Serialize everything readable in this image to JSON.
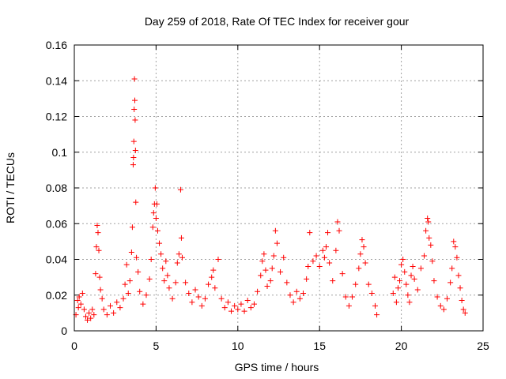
{
  "chart_data": {
    "type": "scatter",
    "title": "Day 259 of 2018, Rate Of TEC Index for receiver gour",
    "xlabel": "GPS time / hours",
    "ylabel": "ROTI / TECUs",
    "xlim": [
      0,
      25
    ],
    "ylim": [
      0,
      0.16
    ],
    "xticks": [
      0,
      5,
      10,
      15,
      20,
      25
    ],
    "xtick_labels": [
      "0",
      "5",
      "10",
      "15",
      "20",
      "25"
    ],
    "yticks": [
      0,
      0.02,
      0.04,
      0.06,
      0.08,
      0.1,
      0.12,
      0.14,
      0.16
    ],
    "ytick_labels": [
      "0",
      "0.02",
      "0.04",
      "0.06",
      "0.08",
      "0.1",
      "0.12",
      "0.14",
      "0.16"
    ],
    "grid": true,
    "marker": "plus",
    "marker_color": "#ff0000",
    "series": [
      {
        "points": [
          [
            0.1,
            0.009
          ],
          [
            0.2,
            0.017
          ],
          [
            0.25,
            0.013
          ],
          [
            0.3,
            0.019
          ],
          [
            0.4,
            0.015
          ],
          [
            0.5,
            0.021
          ],
          [
            0.6,
            0.012
          ],
          [
            0.7,
            0.008
          ],
          [
            0.8,
            0.006
          ],
          [
            0.9,
            0.01
          ],
          [
            1.0,
            0.007
          ],
          [
            1.1,
            0.012
          ],
          [
            1.2,
            0.009
          ],
          [
            1.3,
            0.032
          ],
          [
            1.35,
            0.047
          ],
          [
            1.4,
            0.059
          ],
          [
            1.45,
            0.055
          ],
          [
            1.5,
            0.045
          ],
          [
            1.55,
            0.03
          ],
          [
            1.6,
            0.023
          ],
          [
            1.7,
            0.018
          ],
          [
            1.8,
            0.012
          ],
          [
            2.0,
            0.009
          ],
          [
            2.2,
            0.014
          ],
          [
            2.4,
            0.01
          ],
          [
            2.6,
            0.016
          ],
          [
            2.8,
            0.013
          ],
          [
            3.0,
            0.018
          ],
          [
            3.1,
            0.026
          ],
          [
            3.2,
            0.037
          ],
          [
            3.3,
            0.021
          ],
          [
            3.4,
            0.028
          ],
          [
            3.5,
            0.044
          ],
          [
            3.55,
            0.058
          ],
          [
            3.6,
            0.093
          ],
          [
            3.62,
            0.097
          ],
          [
            3.64,
            0.106
          ],
          [
            3.66,
            0.124
          ],
          [
            3.68,
            0.141
          ],
          [
            3.7,
            0.129
          ],
          [
            3.72,
            0.118
          ],
          [
            3.74,
            0.101
          ],
          [
            3.76,
            0.072
          ],
          [
            3.8,
            0.041
          ],
          [
            3.9,
            0.033
          ],
          [
            4.0,
            0.022
          ],
          [
            4.2,
            0.015
          ],
          [
            4.4,
            0.02
          ],
          [
            4.6,
            0.029
          ],
          [
            4.7,
            0.04
          ],
          [
            4.8,
            0.058
          ],
          [
            4.85,
            0.066
          ],
          [
            4.9,
            0.071
          ],
          [
            4.95,
            0.08
          ],
          [
            5.0,
            0.063
          ],
          [
            5.05,
            0.071
          ],
          [
            5.1,
            0.056
          ],
          [
            5.2,
            0.049
          ],
          [
            5.3,
            0.043
          ],
          [
            5.4,
            0.035
          ],
          [
            5.5,
            0.028
          ],
          [
            5.6,
            0.039
          ],
          [
            5.7,
            0.031
          ],
          [
            5.8,
            0.024
          ],
          [
            6.0,
            0.018
          ],
          [
            6.2,
            0.027
          ],
          [
            6.3,
            0.038
          ],
          [
            6.4,
            0.043
          ],
          [
            6.5,
            0.079
          ],
          [
            6.55,
            0.052
          ],
          [
            6.6,
            0.041
          ],
          [
            6.8,
            0.027
          ],
          [
            7.0,
            0.021
          ],
          [
            7.2,
            0.016
          ],
          [
            7.4,
            0.023
          ],
          [
            7.6,
            0.019
          ],
          [
            7.8,
            0.014
          ],
          [
            8.0,
            0.018
          ],
          [
            8.2,
            0.026
          ],
          [
            8.4,
            0.03
          ],
          [
            8.5,
            0.034
          ],
          [
            8.6,
            0.024
          ],
          [
            8.8,
            0.04
          ],
          [
            9.0,
            0.018
          ],
          [
            9.2,
            0.013
          ],
          [
            9.4,
            0.016
          ],
          [
            9.6,
            0.011
          ],
          [
            9.8,
            0.014
          ],
          [
            10.0,
            0.012
          ],
          [
            10.2,
            0.015
          ],
          [
            10.4,
            0.011
          ],
          [
            10.6,
            0.017
          ],
          [
            10.8,
            0.013
          ],
          [
            11.0,
            0.015
          ],
          [
            11.2,
            0.022
          ],
          [
            11.4,
            0.031
          ],
          [
            11.5,
            0.039
          ],
          [
            11.6,
            0.043
          ],
          [
            11.7,
            0.034
          ],
          [
            11.8,
            0.025
          ],
          [
            12.0,
            0.028
          ],
          [
            12.1,
            0.035
          ],
          [
            12.2,
            0.042
          ],
          [
            12.3,
            0.056
          ],
          [
            12.4,
            0.049
          ],
          [
            12.6,
            0.033
          ],
          [
            12.8,
            0.041
          ],
          [
            13.0,
            0.027
          ],
          [
            13.2,
            0.02
          ],
          [
            13.4,
            0.016
          ],
          [
            13.6,
            0.022
          ],
          [
            13.8,
            0.018
          ],
          [
            14.0,
            0.021
          ],
          [
            14.2,
            0.029
          ],
          [
            14.3,
            0.036
          ],
          [
            14.4,
            0.055
          ],
          [
            14.6,
            0.039
          ],
          [
            14.8,
            0.042
          ],
          [
            15.0,
            0.036
          ],
          [
            15.2,
            0.045
          ],
          [
            15.3,
            0.041
          ],
          [
            15.4,
            0.047
          ],
          [
            15.5,
            0.055
          ],
          [
            15.6,
            0.038
          ],
          [
            15.8,
            0.028
          ],
          [
            16.0,
            0.045
          ],
          [
            16.1,
            0.061
          ],
          [
            16.2,
            0.056
          ],
          [
            16.4,
            0.032
          ],
          [
            16.6,
            0.019
          ],
          [
            16.8,
            0.014
          ],
          [
            17.0,
            0.019
          ],
          [
            17.2,
            0.026
          ],
          [
            17.4,
            0.035
          ],
          [
            17.5,
            0.043
          ],
          [
            17.6,
            0.051
          ],
          [
            17.7,
            0.047
          ],
          [
            17.8,
            0.038
          ],
          [
            18.0,
            0.026
          ],
          [
            18.2,
            0.021
          ],
          [
            18.4,
            0.014
          ],
          [
            18.5,
            0.009
          ],
          [
            19.5,
            0.021
          ],
          [
            19.6,
            0.03
          ],
          [
            19.7,
            0.016
          ],
          [
            19.8,
            0.024
          ],
          [
            19.9,
            0.028
          ],
          [
            20.0,
            0.037
          ],
          [
            20.1,
            0.04
          ],
          [
            20.2,
            0.033
          ],
          [
            20.3,
            0.026
          ],
          [
            20.4,
            0.02
          ],
          [
            20.5,
            0.016
          ],
          [
            20.6,
            0.031
          ],
          [
            20.7,
            0.036
          ],
          [
            20.8,
            0.029
          ],
          [
            21.0,
            0.023
          ],
          [
            21.2,
            0.035
          ],
          [
            21.4,
            0.042
          ],
          [
            21.5,
            0.056
          ],
          [
            21.6,
            0.063
          ],
          [
            21.65,
            0.061
          ],
          [
            21.7,
            0.052
          ],
          [
            21.8,
            0.048
          ],
          [
            21.9,
            0.039
          ],
          [
            22.0,
            0.028
          ],
          [
            22.2,
            0.019
          ],
          [
            22.4,
            0.014
          ],
          [
            22.6,
            0.012
          ],
          [
            22.8,
            0.018
          ],
          [
            23.0,
            0.027
          ],
          [
            23.1,
            0.035
          ],
          [
            23.2,
            0.05
          ],
          [
            23.3,
            0.047
          ],
          [
            23.4,
            0.041
          ],
          [
            23.5,
            0.031
          ],
          [
            23.6,
            0.024
          ],
          [
            23.7,
            0.017
          ],
          [
            23.8,
            0.012
          ],
          [
            23.9,
            0.01
          ]
        ]
      }
    ]
  }
}
